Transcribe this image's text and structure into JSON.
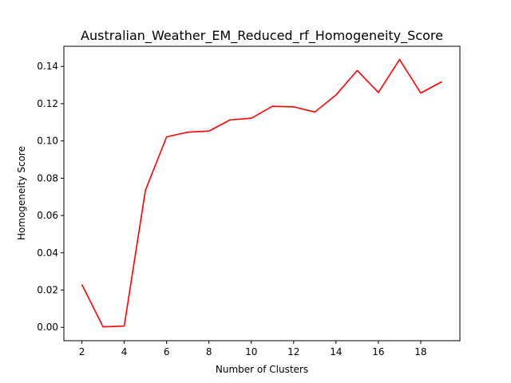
{
  "chart_data": {
    "type": "line",
    "title": "Australian_Weather_EM_Reduced_rf_Homogeneity_Score",
    "xlabel": "Number of Clusters",
    "ylabel": "Homogeneity Score",
    "xlim": [
      1.15,
      19.85
    ],
    "ylim": [
      -0.0072,
      0.1508
    ],
    "xticks": [
      2,
      4,
      6,
      8,
      10,
      12,
      14,
      16,
      18
    ],
    "yticks": [
      0.0,
      0.02,
      0.04,
      0.06,
      0.08,
      0.1,
      0.12,
      0.14
    ],
    "ytick_labels": [
      "0.00",
      "0.02",
      "0.04",
      "0.06",
      "0.08",
      "0.10",
      "0.12",
      "0.14"
    ],
    "grid": false,
    "series": [
      {
        "color": "#ff0000",
        "x": [
          2,
          3,
          4,
          5,
          6,
          7,
          8,
          9,
          10,
          11,
          12,
          13,
          14,
          15,
          16,
          17,
          18,
          19
        ],
        "y": [
          0.023,
          0.0002,
          0.0007,
          0.0735,
          0.1022,
          0.1047,
          0.1053,
          0.1113,
          0.1122,
          0.1186,
          0.1183,
          0.1155,
          0.1247,
          0.1378,
          0.126,
          0.1437,
          0.1257,
          0.1318
        ]
      }
    ]
  }
}
